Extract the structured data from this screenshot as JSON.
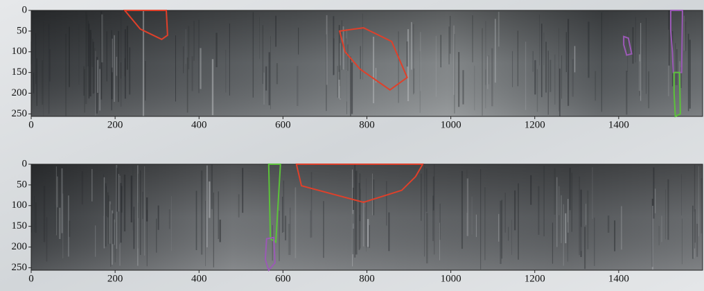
{
  "chart_data": [
    {
      "type": "image",
      "xlim": [
        0,
        1600
      ],
      "ylim": [
        0,
        256
      ],
      "xticks": [
        0,
        200,
        400,
        600,
        800,
        1000,
        1200,
        1400
      ],
      "yticks": [
        0,
        50,
        100,
        150,
        200,
        250
      ],
      "regions": [
        {
          "color": "#e0402a",
          "x": [
            223,
            322,
            325,
            311,
            260,
            223
          ],
          "y": [
            0,
            0,
            60,
            70,
            45,
            0
          ]
        },
        {
          "color": "#e0402a",
          "x": [
            735,
            792,
            859,
            896,
            855,
            784,
            748
          ],
          "y": [
            50,
            42,
            75,
            162,
            192,
            142,
            100
          ]
        },
        {
          "color": "#9b59b6",
          "x": [
            1412,
            1423,
            1431,
            1419,
            1412
          ],
          "y": [
            63,
            67,
            105,
            108,
            83
          ]
        },
        {
          "color": "#9b59b6",
          "x": [
            1524,
            1552,
            1550,
            1530,
            1528,
            1524
          ],
          "y": [
            0,
            0,
            150,
            150,
            100,
            50
          ]
        },
        {
          "color": "#5cc23a",
          "x": [
            1532,
            1545,
            1547,
            1535,
            1532
          ],
          "y": [
            150,
            150,
            250,
            256,
            200
          ]
        }
      ]
    },
    {
      "type": "image",
      "xlim": [
        0,
        1600
      ],
      "ylim": [
        0,
        256
      ],
      "xticks": [
        0,
        200,
        400,
        600,
        800,
        1000,
        1200,
        1400
      ],
      "yticks": [
        0,
        50,
        100,
        150,
        200,
        250
      ],
      "regions": [
        {
          "color": "#5cc23a",
          "x": [
            566,
            594,
            583,
            570
          ],
          "y": [
            0,
            0,
            188,
            180
          ]
        },
        {
          "color": "#9b59b6",
          "x": [
            561,
            578,
            581,
            566,
            558
          ],
          "y": [
            180,
            177,
            238,
            256,
            230
          ]
        },
        {
          "color": "#e0402a",
          "x": [
            632,
            933,
            916,
            883,
            792,
            718,
            644
          ],
          "y": [
            0,
            0,
            30,
            63,
            92,
            72,
            52
          ]
        }
      ]
    }
  ]
}
